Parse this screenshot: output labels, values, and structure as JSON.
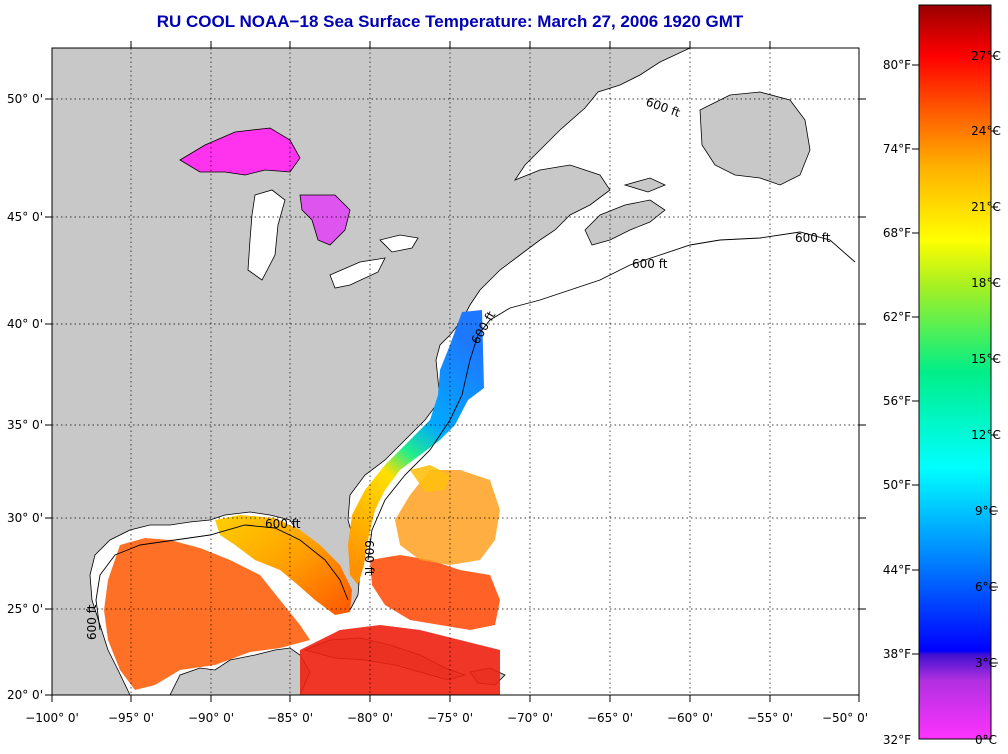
{
  "title": "RU COOL  NOAA−18  Sea Surface Temperature:  March 27, 2006 1920 GMT",
  "colors": {
    "title": "#0000b4",
    "land": "#c8c8c8",
    "ocean": "#ffffff"
  },
  "map": {
    "lon_labels": [
      "−100° 0'",
      "−95° 0'",
      "−90° 0'",
      "−85° 0'",
      "−80° 0'",
      "−75° 0'",
      "−70° 0'",
      "−65° 0'",
      "−60° 0'",
      "−55° 0'",
      "−50° 0'"
    ],
    "lat_labels": [
      "50° 0'",
      "45° 0'",
      "40° 0'",
      "35° 0'",
      "30° 0'",
      "25° 0'",
      "20° 0'"
    ],
    "contour_label": "600 ft"
  },
  "colorbar": {
    "fahrenheit": [
      "80°F",
      "74°F",
      "68°F",
      "62°F",
      "56°F",
      "50°F",
      "44°F",
      "38°F",
      "32°F"
    ],
    "celsius": [
      "27°C",
      "24°C",
      "21°C",
      "18°C",
      "15°C",
      "12°C",
      "9°C",
      "6°C",
      "3°C",
      "0°C"
    ]
  }
}
